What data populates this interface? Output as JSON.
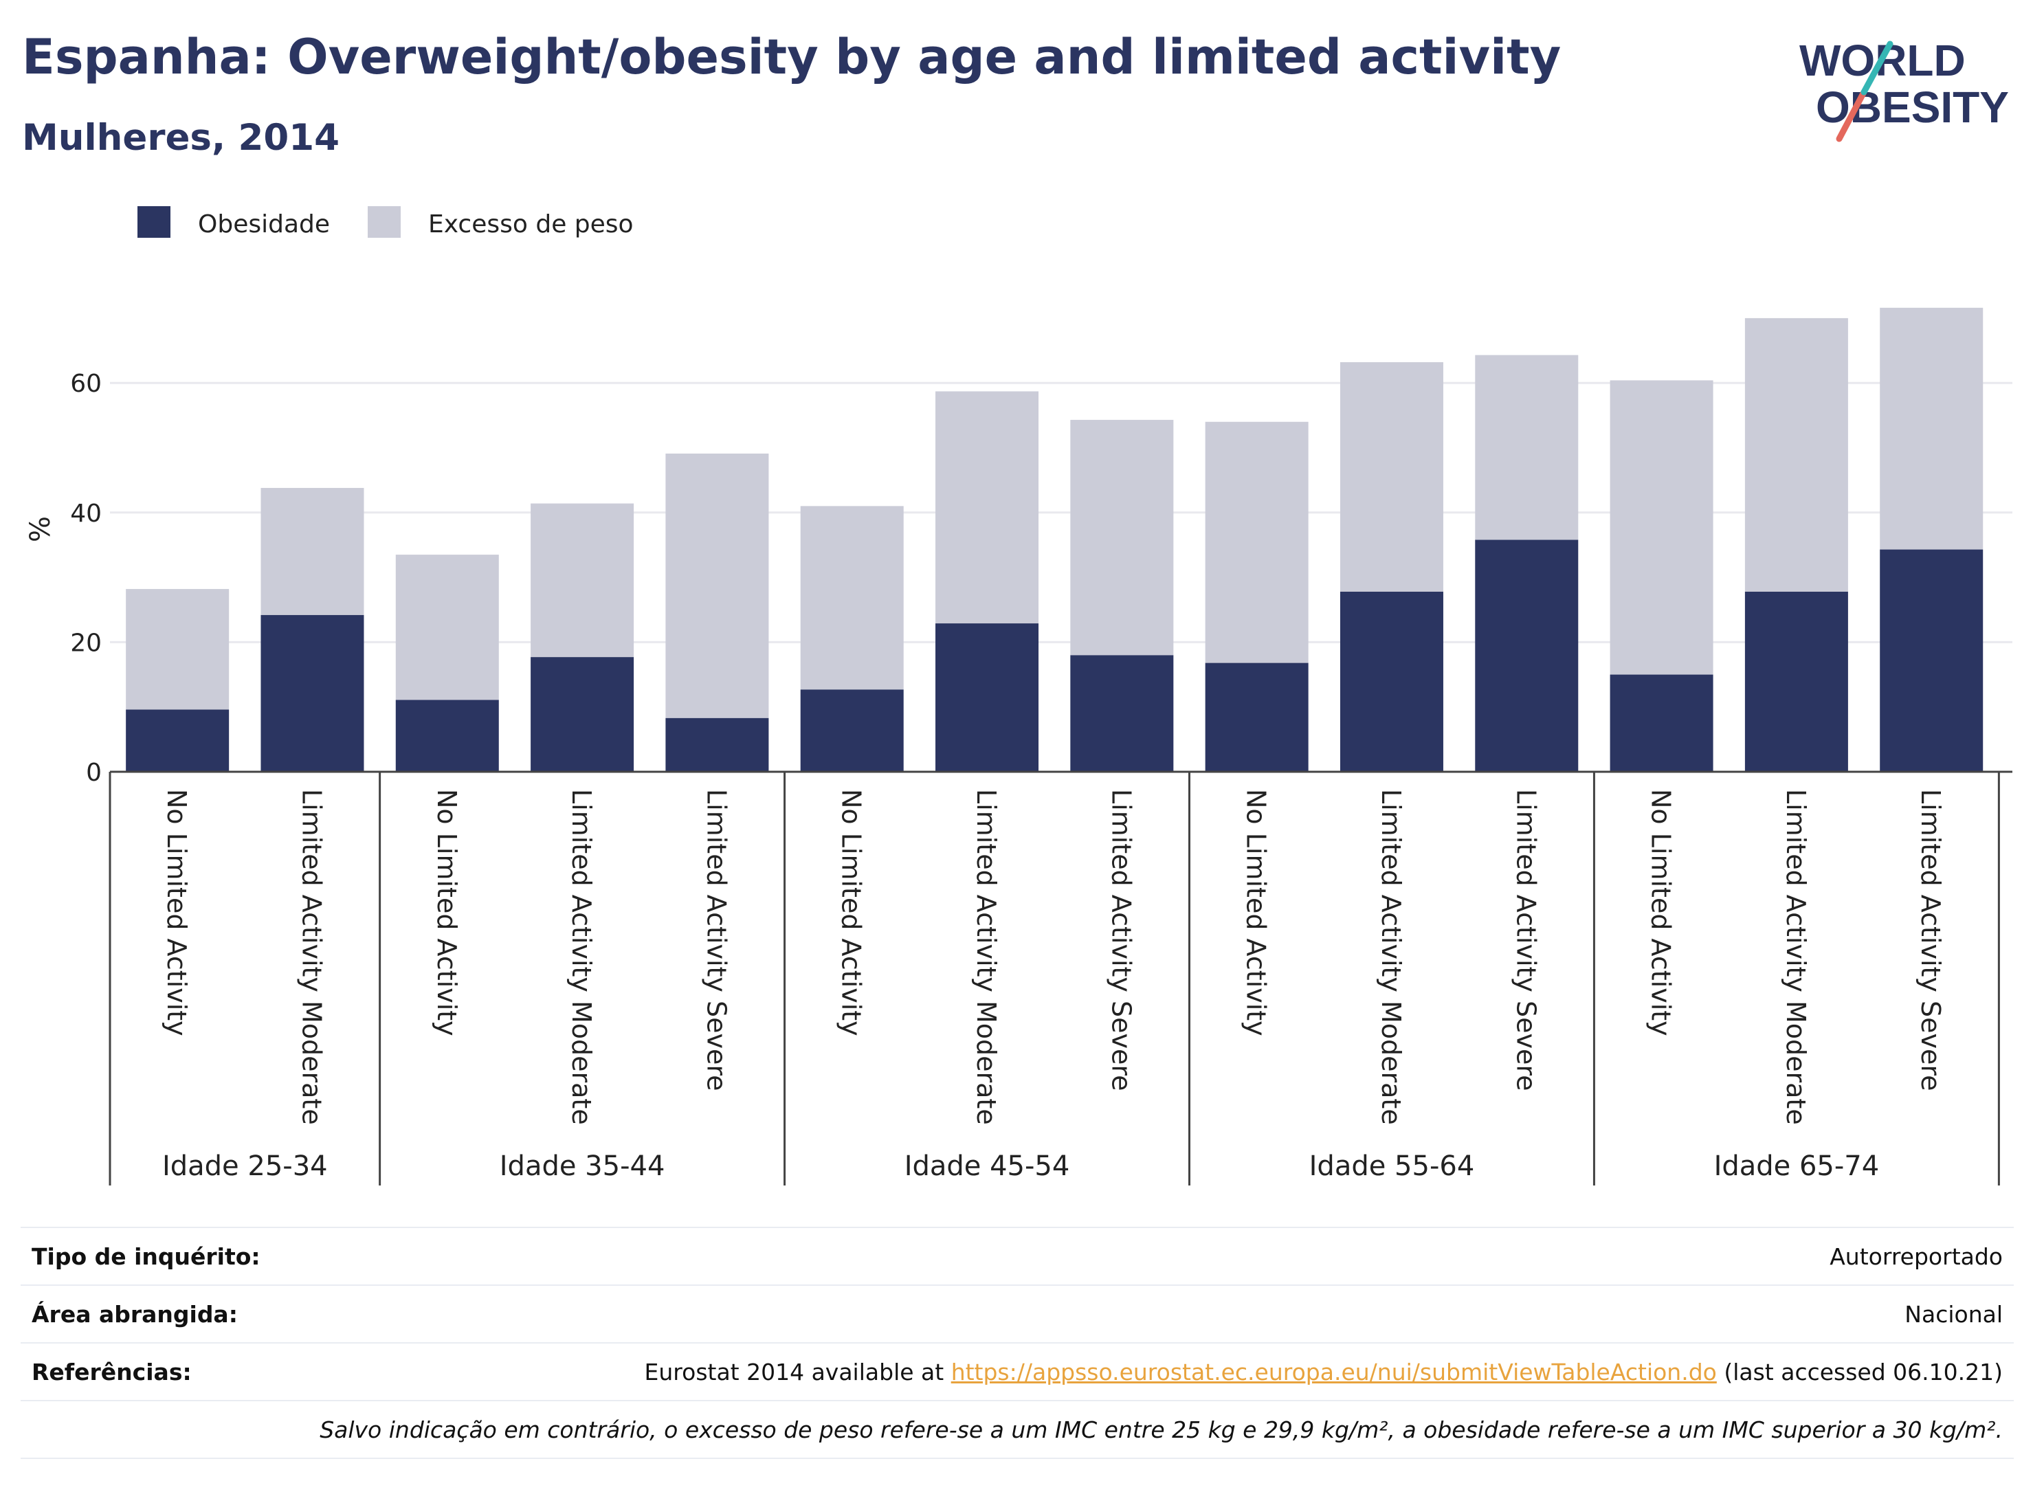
{
  "header": {
    "title": "Espanha: Overweight/obesity by age and limited activity",
    "subtitle": "Mulheres, 2014"
  },
  "logo": {
    "line1": "WORLD",
    "line2": "OBESITY"
  },
  "chart_data": {
    "type": "bar",
    "stacked": true,
    "ylabel": "%",
    "ylim": [
      0,
      75
    ],
    "yticks": [
      0,
      20,
      40,
      60
    ],
    "grid": true,
    "legend_position": "top-left",
    "groups": [
      {
        "label": "Idade 25-34",
        "categories": [
          "No Limited Activity",
          "Limited Activity Moderate"
        ]
      },
      {
        "label": "Idade 35-44",
        "categories": [
          "No Limited Activity",
          "Limited Activity Moderate",
          "Limited Activity Severe"
        ]
      },
      {
        "label": "Idade 45-54",
        "categories": [
          "No Limited Activity",
          "Limited Activity Moderate",
          "Limited Activity Severe"
        ]
      },
      {
        "label": "Idade 55-64",
        "categories": [
          "No Limited Activity",
          "Limited Activity Moderate",
          "Limited Activity Severe"
        ]
      },
      {
        "label": "Idade 65-74",
        "categories": [
          "No Limited Activity",
          "Limited Activity Moderate",
          "Limited Activity Severe"
        ]
      }
    ],
    "series": [
      {
        "name": "Obesidade",
        "color": "#2b3561",
        "values": [
          9.6,
          24.2,
          11.1,
          17.7,
          8.3,
          12.7,
          22.9,
          18.0,
          16.8,
          27.8,
          35.8,
          15.0,
          27.8,
          34.3
        ]
      },
      {
        "name": "Excesso de peso",
        "color": "#cbccd8",
        "values": [
          18.6,
          19.6,
          22.4,
          23.7,
          40.8,
          28.3,
          35.8,
          36.3,
          37.2,
          35.4,
          28.5,
          45.4,
          42.2,
          37.3
        ]
      }
    ]
  },
  "info": {
    "survey_label": "Tipo de inquérito:",
    "survey_value": "Autorreportado",
    "area_label": "Área abrangida:",
    "area_value": "Nacional",
    "refs_label": "Referências:",
    "refs_prefix": "Eurostat 2014 available at ",
    "refs_link": "https://appsso.eurostat.ec.europa.eu/nui/submitViewTableAction.do",
    "refs_suffix": " (last accessed 06.10.21)",
    "note": "Salvo indicação em contrário, o excesso de peso refere-se a um IMC entre 25 kg e 29,9 kg/m², a obesidade refere-se a um IMC superior a 30 kg/m²."
  }
}
